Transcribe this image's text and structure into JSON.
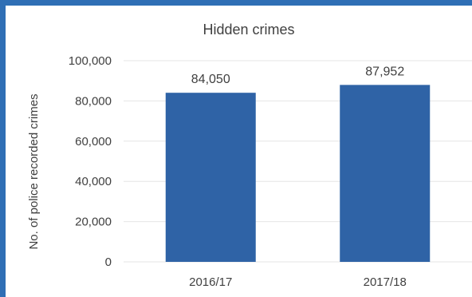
{
  "chart_data": {
    "type": "bar",
    "title": "Hidden crimes",
    "xlabel": "",
    "ylabel": "No. of police recorded crimes",
    "categories": [
      "2016/17",
      "2017/18"
    ],
    "values": [
      84050,
      87952
    ],
    "data_labels": [
      "84,050",
      "87,952"
    ],
    "ylim": [
      0,
      100000
    ],
    "yticks": [
      0,
      20000,
      40000,
      60000,
      80000,
      100000
    ],
    "ytick_labels": [
      "0",
      "20,000",
      "40,000",
      "60,000",
      "80,000",
      "100,000"
    ],
    "grid": true,
    "bar_color": "#2f63a6"
  },
  "frame": {
    "border_color": "#2f6fb5"
  }
}
